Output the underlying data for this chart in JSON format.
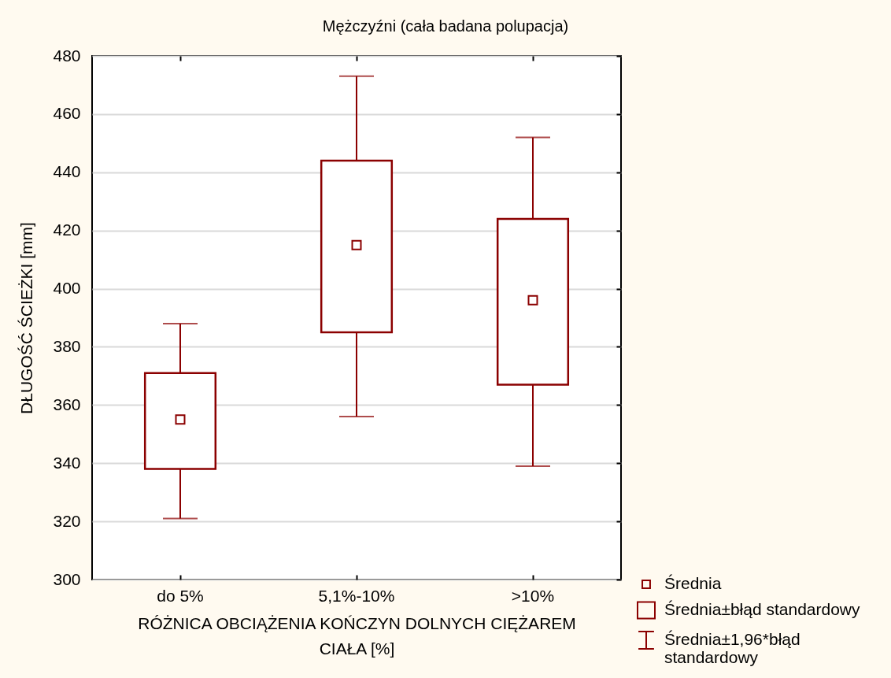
{
  "chart_data": {
    "type": "box",
    "title": "Mężczyźni (cała badana polupacja)",
    "xlabel": "RÓŻNICA OBCIĄŻENIA KOŃCZYN DOLNYCH CIĘŻAREM CIAŁA [%]",
    "ylabel": "DŁUGOŚĆ ŚCIEŻKI [mm]",
    "categories": [
      "do 5%",
      "5,1%-10%",
      ">10%"
    ],
    "boxes": [
      {
        "low": 321,
        "q1": 338,
        "q3": 371,
        "high": 388,
        "mean": 355
      },
      {
        "low": 356,
        "q1": 385,
        "q3": 444,
        "high": 473,
        "mean": 415
      },
      {
        "low": 339,
        "q1": 367,
        "q3": 424,
        "high": 452,
        "mean": 396
      }
    ],
    "color": "#8b0000",
    "marker": "square",
    "ylim": [
      300,
      480
    ],
    "yticks": [
      300,
      320,
      340,
      360,
      380,
      400,
      420,
      440,
      460,
      480
    ],
    "grid": "y",
    "annotations": [
      "Średnia",
      "Średnia±błąd standardowy",
      "Średnia±1,96*błąd standardowy"
    ]
  }
}
